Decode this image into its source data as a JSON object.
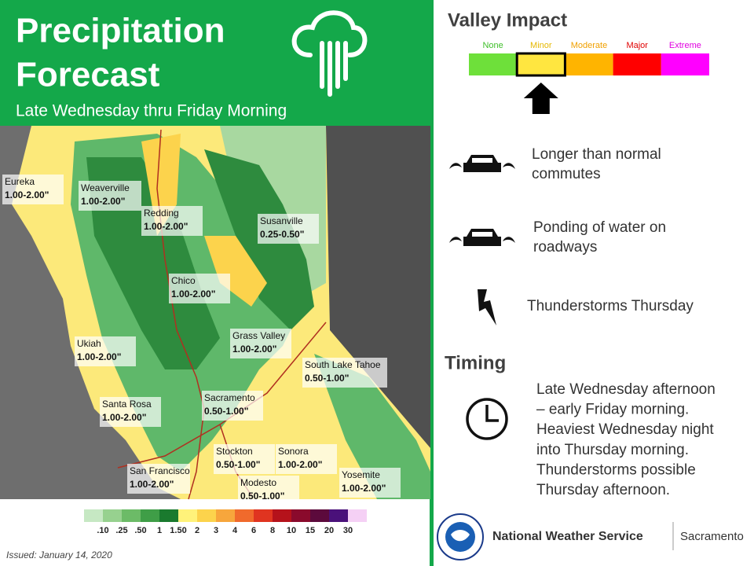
{
  "header": {
    "title_lines": [
      "Precipitation",
      "Forecast"
    ],
    "subtitle": "Late Wednesday thru Friday Morning"
  },
  "map_labels": [
    {
      "place": "Eureka",
      "amount": "1.00-2.00\""
    },
    {
      "place": "Weaverville",
      "amount": "1.00-2.00\""
    },
    {
      "place": "Redding",
      "amount": "1.00-2.00\""
    },
    {
      "place": "Susanville",
      "amount": "0.25-0.50\""
    },
    {
      "place": "Chico",
      "amount": "1.00-2.00\""
    },
    {
      "place": "Ukiah",
      "amount": "1.00-2.00\""
    },
    {
      "place": "Grass Valley",
      "amount": "1.00-2.00\""
    },
    {
      "place": "South Lake Tahoe",
      "amount": "0.50-1.00\""
    },
    {
      "place": "Santa Rosa",
      "amount": "1.00-2.00\""
    },
    {
      "place": "Sacramento",
      "amount": "0.50-1.00\""
    },
    {
      "place": "Stockton",
      "amount": "0.50-1.00\""
    },
    {
      "place": "Sonora",
      "amount": "1.00-2.00\""
    },
    {
      "place": "San Francisco",
      "amount": "1.00-2.00\""
    },
    {
      "place": "Modesto",
      "amount": "0.50-1.00\""
    },
    {
      "place": "Yosemite",
      "amount": "1.00-2.00\""
    }
  ],
  "legend": {
    "labels": [
      ".10",
      ".25",
      ".50",
      "1",
      "1.50",
      "2",
      "3",
      "4",
      "6",
      "8",
      "10",
      "15",
      "20",
      "30"
    ],
    "colors": [
      "#c6e8c3",
      "#97d18f",
      "#6cbb67",
      "#3f9e47",
      "#1a7a2e",
      "#fff27a",
      "#fcd34c",
      "#f7a63c",
      "#f06a2c",
      "#e03420",
      "#b5121b",
      "#8a0a2c",
      "#5c0a3c",
      "#4a117a",
      "#f5d0f5"
    ]
  },
  "issued": "Issued: January 14, 2020",
  "impact": {
    "title": "Valley Impact",
    "selected": "Minor",
    "levels": [
      {
        "name": "None",
        "color": "#6ee03a",
        "label_color": "#3fbf2a"
      },
      {
        "name": "Minor",
        "color": "#ffe640",
        "label_color": "#e6b800"
      },
      {
        "name": "Moderate",
        "color": "#ffb400",
        "label_color": "#f0a000"
      },
      {
        "name": "Major",
        "color": "#ff0000",
        "label_color": "#e00000"
      },
      {
        "name": "Extreme",
        "color": "#ff00ff",
        "label_color": "#e000e0"
      }
    ],
    "items": [
      {
        "lines": [
          "Longer than normal",
          "commutes"
        ]
      },
      {
        "lines": [
          "Ponding of water on",
          "roadways"
        ]
      },
      {
        "lines": [
          "Thunderstorms  Thursday"
        ]
      }
    ]
  },
  "timing": {
    "title": "Timing",
    "lines": [
      "Late Wednesday afternoon",
      "– early Friday morning.",
      "Heaviest Wednesday night",
      "into Thursday morning.",
      "Thunderstorms  possible",
      "Thursday afternoon."
    ]
  },
  "footer": {
    "agency": "National Weather Service",
    "office": "Sacramento"
  }
}
